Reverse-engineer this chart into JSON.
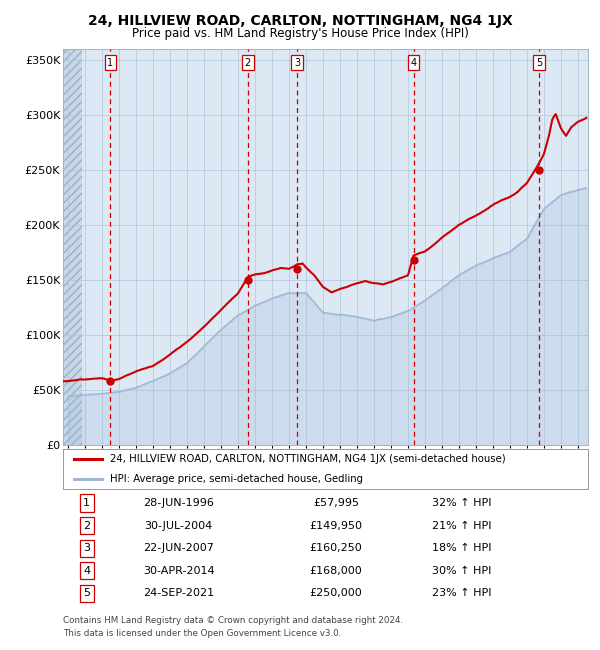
{
  "title": "24, HILLVIEW ROAD, CARLTON, NOTTINGHAM, NG4 1JX",
  "subtitle": "Price paid vs. HM Land Registry's House Price Index (HPI)",
  "legend_line1": "24, HILLVIEW ROAD, CARLTON, NOTTINGHAM, NG4 1JX (semi-detached house)",
  "legend_line2": "HPI: Average price, semi-detached house, Gedling",
  "footer_line1": "Contains HM Land Registry data © Crown copyright and database right 2024.",
  "footer_line2": "This data is licensed under the Open Government Licence v3.0.",
  "sale_color": "#cc0000",
  "hpi_color": "#a0b8d8",
  "background_color": "#dce9f5",
  "ylim": [
    0,
    360000
  ],
  "yticks": [
    0,
    50000,
    100000,
    150000,
    200000,
    250000,
    300000,
    350000
  ],
  "ytick_labels": [
    "£0",
    "£50K",
    "£100K",
    "£150K",
    "£200K",
    "£250K",
    "£300K",
    "£350K"
  ],
  "xlim_start": 1993.7,
  "xlim_end": 2024.6,
  "hatch_end": 1994.83,
  "sales": [
    {
      "num": 1,
      "price": 57995,
      "x": 1996.49
    },
    {
      "num": 2,
      "price": 149950,
      "x": 2004.58
    },
    {
      "num": 3,
      "price": 160250,
      "x": 2007.47
    },
    {
      "num": 4,
      "price": 168000,
      "x": 2014.33
    },
    {
      "num": 5,
      "price": 250000,
      "x": 2021.73
    }
  ],
  "table_rows": [
    [
      "1",
      "28-JUN-1996",
      "£57,995",
      "32% ↑ HPI"
    ],
    [
      "2",
      "30-JUL-2004",
      "£149,950",
      "21% ↑ HPI"
    ],
    [
      "3",
      "22-JUN-2007",
      "£160,250",
      "18% ↑ HPI"
    ],
    [
      "4",
      "30-APR-2014",
      "£168,000",
      "30% ↑ HPI"
    ],
    [
      "5",
      "24-SEP-2021",
      "£250,000",
      "23% ↑ HPI"
    ]
  ],
  "hpi_anchors": [
    [
      1994.0,
      44000
    ],
    [
      1995.0,
      46000
    ],
    [
      1996.0,
      47500
    ],
    [
      1997.0,
      49000
    ],
    [
      1998.0,
      53000
    ],
    [
      1999.0,
      59000
    ],
    [
      2000.0,
      66000
    ],
    [
      2001.0,
      75000
    ],
    [
      2002.0,
      90000
    ],
    [
      2003.0,
      105000
    ],
    [
      2004.0,
      118000
    ],
    [
      2005.0,
      127000
    ],
    [
      2006.0,
      133000
    ],
    [
      2007.0,
      138000
    ],
    [
      2008.0,
      138000
    ],
    [
      2009.0,
      120000
    ],
    [
      2010.0,
      118000
    ],
    [
      2011.0,
      116000
    ],
    [
      2012.0,
      113000
    ],
    [
      2013.0,
      116000
    ],
    [
      2014.0,
      122000
    ],
    [
      2015.0,
      132000
    ],
    [
      2016.0,
      143000
    ],
    [
      2017.0,
      155000
    ],
    [
      2018.0,
      163000
    ],
    [
      2019.0,
      170000
    ],
    [
      2020.0,
      176000
    ],
    [
      2021.0,
      188000
    ],
    [
      2022.0,
      215000
    ],
    [
      2023.0,
      228000
    ],
    [
      2024.0,
      232000
    ],
    [
      2024.5,
      234000
    ]
  ],
  "sale_anchors": [
    [
      1993.7,
      58000
    ],
    [
      1994.5,
      59000
    ],
    [
      1995.5,
      60000
    ],
    [
      1996.0,
      60500
    ],
    [
      1996.49,
      57995
    ],
    [
      1997.0,
      59000
    ],
    [
      1997.5,
      62000
    ],
    [
      1998.0,
      65000
    ],
    [
      1999.0,
      70000
    ],
    [
      2000.0,
      80000
    ],
    [
      2001.0,
      92000
    ],
    [
      2002.0,
      105000
    ],
    [
      2003.0,
      120000
    ],
    [
      2004.0,
      135000
    ],
    [
      2004.58,
      149950
    ],
    [
      2005.0,
      152000
    ],
    [
      2005.5,
      153000
    ],
    [
      2006.0,
      155000
    ],
    [
      2006.5,
      157000
    ],
    [
      2007.0,
      156000
    ],
    [
      2007.47,
      160250
    ],
    [
      2007.8,
      161000
    ],
    [
      2008.0,
      157000
    ],
    [
      2008.5,
      150000
    ],
    [
      2009.0,
      140000
    ],
    [
      2009.5,
      135000
    ],
    [
      2010.0,
      138000
    ],
    [
      2010.5,
      140000
    ],
    [
      2011.0,
      143000
    ],
    [
      2011.5,
      145000
    ],
    [
      2012.0,
      143000
    ],
    [
      2012.5,
      142000
    ],
    [
      2013.0,
      144000
    ],
    [
      2013.5,
      147000
    ],
    [
      2014.0,
      150000
    ],
    [
      2014.33,
      168000
    ],
    [
      2015.0,
      172000
    ],
    [
      2015.5,
      178000
    ],
    [
      2016.0,
      185000
    ],
    [
      2016.5,
      190000
    ],
    [
      2017.0,
      196000
    ],
    [
      2017.5,
      200000
    ],
    [
      2018.0,
      204000
    ],
    [
      2018.5,
      208000
    ],
    [
      2019.0,
      213000
    ],
    [
      2019.5,
      217000
    ],
    [
      2020.0,
      220000
    ],
    [
      2020.5,
      225000
    ],
    [
      2021.0,
      232000
    ],
    [
      2021.73,
      250000
    ],
    [
      2022.0,
      258000
    ],
    [
      2022.3,
      275000
    ],
    [
      2022.5,
      290000
    ],
    [
      2022.7,
      295000
    ],
    [
      2023.0,
      282000
    ],
    [
      2023.3,
      275000
    ],
    [
      2023.6,
      283000
    ],
    [
      2024.0,
      288000
    ],
    [
      2024.5,
      292000
    ]
  ]
}
